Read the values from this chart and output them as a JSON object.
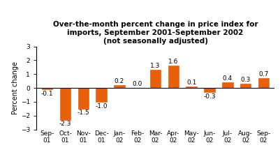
{
  "categories": [
    "Sep-\n01",
    "Oct-\n01",
    "Nov-\n01",
    "Dec-\n01",
    "Jan-\n02",
    "Feb-\n02",
    "Mar-\n02",
    "Apr-\n02",
    "May-\n02",
    "Jun-\n02",
    "Jul-\n02",
    "Aug-\n02",
    "Sep-\n02"
  ],
  "values": [
    -0.1,
    -2.3,
    -1.5,
    -1.0,
    0.2,
    0.0,
    1.3,
    1.6,
    0.1,
    -0.3,
    0.4,
    0.3,
    0.7
  ],
  "bar_color": "#E8610A",
  "title_line1": "Over-the-month percent change in price index for",
  "title_line2": "imports, September 2001-September 2002",
  "title_line3": "(not seasonally adjusted)",
  "ylabel": "Percent change",
  "ylim": [
    -3,
    3
  ],
  "yticks": [
    -3,
    -2,
    -1,
    0,
    1,
    2,
    3
  ],
  "title_fontsize": 7.5,
  "axis_label_fontsize": 7,
  "tick_fontsize": 6.5,
  "value_fontsize": 6.5,
  "background_color": "#ffffff"
}
